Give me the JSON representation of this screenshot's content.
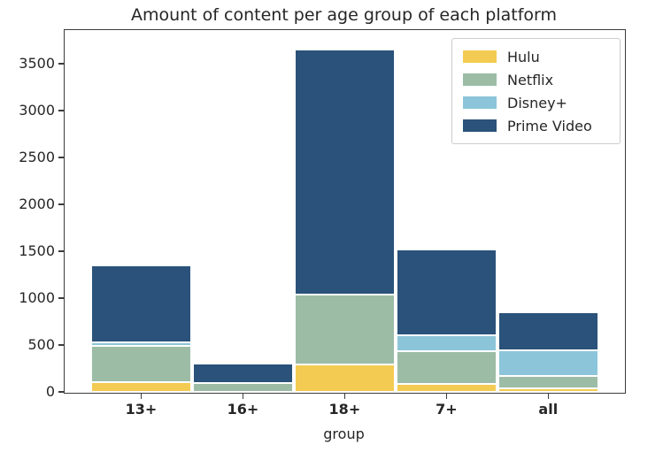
{
  "chart_data": {
    "type": "bar",
    "stacked": true,
    "title": "Amount of content per age group of each platform",
    "xlabel": "group",
    "ylabel": "",
    "categories": [
      "13+",
      "16+",
      "18+",
      "7+",
      "all"
    ],
    "series": [
      {
        "name": "Hulu",
        "color": "#F3CB52",
        "values": [
          105,
          0,
          290,
          85,
          40
        ]
      },
      {
        "name": "Netflix",
        "color": "#9CBCA6",
        "values": [
          385,
          90,
          745,
          345,
          130
        ]
      },
      {
        "name": "Disney+",
        "color": "#8CC5D9",
        "values": [
          40,
          0,
          0,
          170,
          275
        ]
      },
      {
        "name": "Prime Video",
        "color": "#2A527A",
        "values": [
          815,
          215,
          2615,
          920,
          400
        ]
      }
    ],
    "totals": [
      1345,
      305,
      3650,
      1520,
      845
    ],
    "yticks": [
      0,
      500,
      1000,
      1500,
      2000,
      2500,
      3000,
      3500
    ],
    "ylim": [
      0,
      3868
    ],
    "grid": false,
    "legend_position": "upper right",
    "legend_entries": [
      "Hulu",
      "Netflix",
      "Disney+",
      "Prime Video"
    ],
    "bar_edge_color": "#ffffff"
  }
}
